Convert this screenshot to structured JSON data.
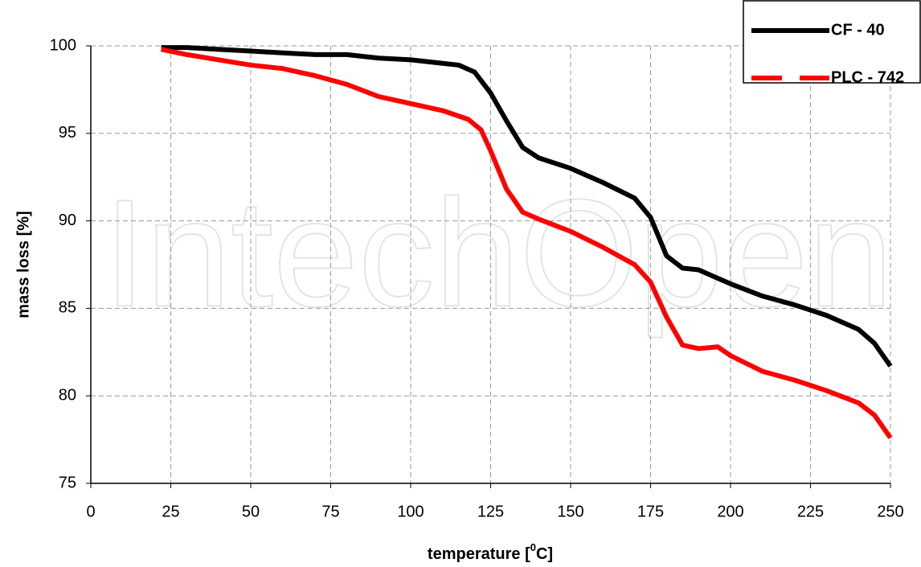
{
  "chart_data": {
    "type": "line",
    "watermark": "IntechOpen",
    "xlabel_parts": [
      "temperature [",
      "0",
      "C]"
    ],
    "ylabel": "mass loss [%]",
    "xlim": [
      0,
      250
    ],
    "xticks": [
      0,
      25,
      50,
      75,
      100,
      125,
      150,
      175,
      200,
      225,
      250
    ],
    "ylim": [
      75,
      100
    ],
    "yticks": [
      75,
      80,
      85,
      90,
      95,
      100
    ],
    "grid": true,
    "legend": "upper right",
    "series": [
      {
        "name": "CF - 40",
        "color": "#000000",
        "dash": "solid",
        "x": [
          22,
          30,
          40,
          50,
          60,
          70,
          80,
          90,
          100,
          110,
          115,
          120,
          125,
          130,
          135,
          140,
          150,
          160,
          170,
          175,
          180,
          185,
          190,
          200,
          210,
          220,
          230,
          240,
          245,
          250
        ],
        "values": [
          99.9,
          99.9,
          99.8,
          99.7,
          99.6,
          99.5,
          99.5,
          99.3,
          99.2,
          99.0,
          98.9,
          98.5,
          97.3,
          95.7,
          94.2,
          93.6,
          93.0,
          92.2,
          91.3,
          90.2,
          88.0,
          87.3,
          87.2,
          86.4,
          85.7,
          85.2,
          84.6,
          83.8,
          83.0,
          81.7
        ]
      },
      {
        "name": "PLC - 742",
        "color": "#ff0000",
        "dash": "dashed",
        "x": [
          22,
          30,
          40,
          50,
          60,
          70,
          80,
          90,
          100,
          110,
          118,
          122,
          125,
          130,
          135,
          140,
          150,
          160,
          170,
          175,
          180,
          185,
          190,
          196,
          200,
          210,
          220,
          230,
          240,
          245,
          250
        ],
        "values": [
          99.8,
          99.5,
          99.2,
          98.9,
          98.7,
          98.3,
          97.8,
          97.1,
          96.7,
          96.3,
          95.8,
          95.2,
          94.0,
          91.8,
          90.5,
          90.1,
          89.4,
          88.5,
          87.5,
          86.5,
          84.5,
          82.9,
          82.7,
          82.8,
          82.3,
          81.4,
          80.9,
          80.3,
          79.6,
          78.9,
          77.6
        ]
      }
    ]
  }
}
